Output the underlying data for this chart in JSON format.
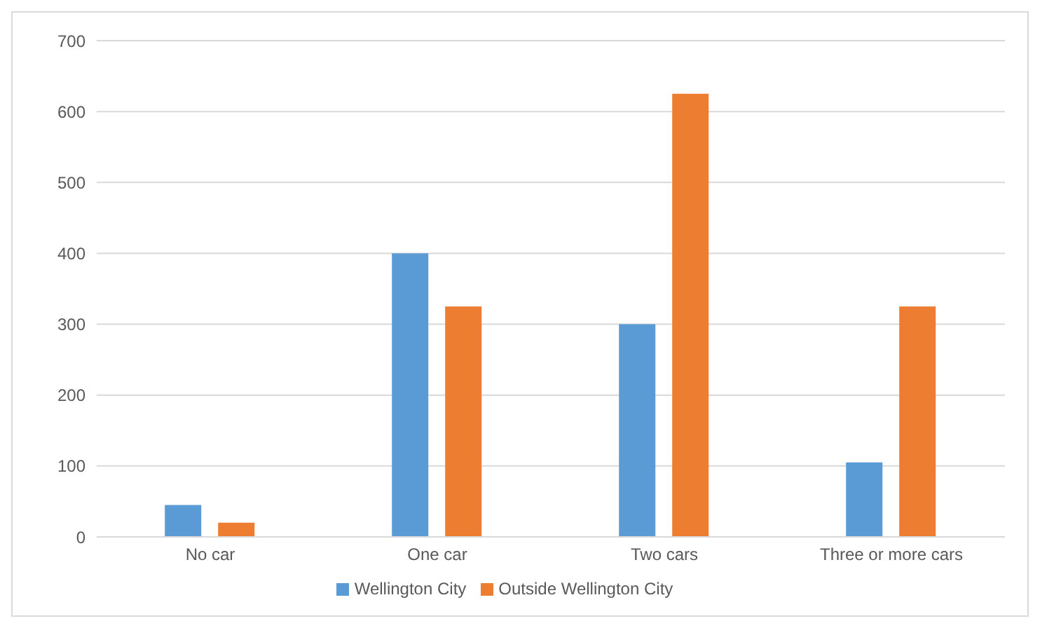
{
  "chart_data": {
    "type": "bar",
    "categories": [
      "No car",
      "One car",
      "Two cars",
      "Three or more cars"
    ],
    "series": [
      {
        "name": "Wellington City",
        "color": "#5b9bd5",
        "values": [
          45,
          400,
          300,
          105
        ]
      },
      {
        "name": "Outside Wellington City",
        "color": "#ed7d31",
        "values": [
          20,
          325,
          625,
          325
        ]
      }
    ],
    "ylim": [
      0,
      700
    ],
    "yticks": [
      0,
      100,
      200,
      300,
      400,
      500,
      600,
      700
    ],
    "grid": "y",
    "legend": "bottom"
  }
}
